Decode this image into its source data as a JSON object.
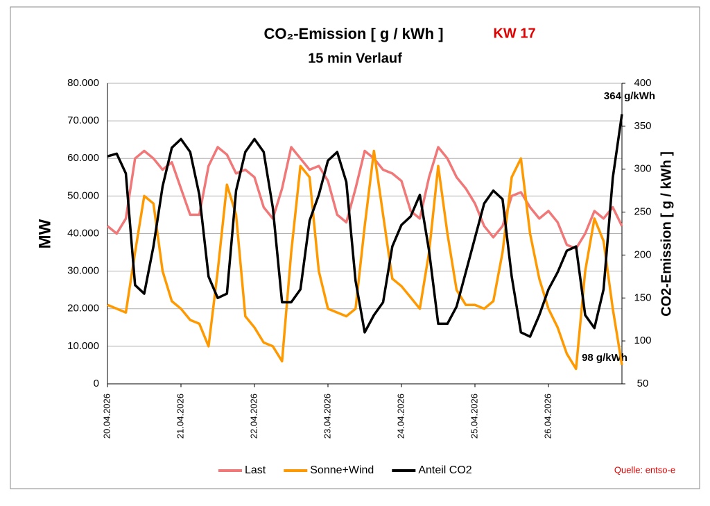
{
  "chart_data": {
    "type": "line",
    "title": "CO₂-Emission [ g / kWh ]",
    "title_tag": "KW 17",
    "subtitle": "15 min Verlauf",
    "y_label": "MW",
    "y2_label": "CO2-Emission [ g / kWh ]",
    "source": "Quelle: entso-e",
    "annotations": [
      "364 g/kWh",
      "98 g/kWh"
    ],
    "grid": true,
    "legend": "bottom",
    "categories": [
      "20.04.2026",
      null,
      null,
      null,
      null,
      null,
      null,
      null,
      "21.04.2026",
      null,
      null,
      null,
      null,
      null,
      null,
      null,
      "22.04.2026",
      null,
      null,
      null,
      null,
      null,
      null,
      null,
      "23.04.2026",
      null,
      null,
      null,
      null,
      null,
      null,
      null,
      "24.04.2026",
      null,
      null,
      null,
      null,
      null,
      null,
      null,
      "25.04.2026",
      null,
      null,
      null,
      null,
      null,
      null,
      null,
      "26.04.2026",
      null,
      null,
      null,
      null,
      null,
      null,
      null,
      null
    ],
    "ylim": [
      0,
      80000
    ],
    "yticks": [
      0,
      {
        "value": 10000,
        "label": "10.000"
      },
      {
        "value": 20000,
        "label": "20.000"
      },
      {
        "value": 30000,
        "label": "30.000"
      },
      {
        "value": 40000,
        "label": "40.000"
      },
      {
        "value": 50000,
        "label": "50.000"
      },
      {
        "value": 60000,
        "label": "60.000"
      },
      {
        "value": 70000,
        "label": "70.000"
      },
      {
        "value": 80000,
        "label": "80.000"
      }
    ],
    "y2lim": [
      50,
      400
    ],
    "y2ticks": [
      50,
      100,
      150,
      200,
      250,
      300,
      350,
      400
    ],
    "series": [
      {
        "name": "Last",
        "color": "#f07878",
        "values": [
          42000,
          40000,
          44000,
          60000,
          62000,
          60000,
          57000,
          59000,
          52000,
          45000,
          45000,
          58000,
          63000,
          61000,
          56000,
          57000,
          55000,
          47000,
          44000,
          52000,
          63000,
          60000,
          57000,
          58000,
          54000,
          45000,
          43000,
          52000,
          62000,
          60000,
          57000,
          56000,
          54000,
          46000,
          44000,
          55000,
          63000,
          60000,
          55000,
          52000,
          48000,
          42000,
          39000,
          42000,
          50000,
          51000,
          47000,
          44000,
          46000,
          43000,
          37000,
          36000,
          40000,
          46000,
          44000,
          47000,
          42000
        ]
      },
      {
        "name": "Sonne+Wind",
        "color": "#ff9900",
        "values": [
          21000,
          20000,
          19000,
          35000,
          50000,
          48000,
          30000,
          22000,
          20000,
          17000,
          16000,
          10000,
          30000,
          53000,
          45000,
          18000,
          15000,
          11000,
          10000,
          6000,
          35000,
          58000,
          55000,
          30000,
          20000,
          19000,
          18000,
          20000,
          42000,
          62000,
          45000,
          28000,
          26000,
          23000,
          20000,
          35000,
          58000,
          40000,
          25000,
          21000,
          21000,
          20000,
          22000,
          35000,
          55000,
          60000,
          40000,
          28000,
          20000,
          15000,
          8000,
          4000,
          30000,
          44000,
          38000,
          20000,
          5000
        ]
      },
      {
        "name": "Anteil CO2",
        "color": "#000000",
        "axis": "y2",
        "values": [
          315,
          318,
          295,
          165,
          155,
          210,
          280,
          325,
          335,
          320,
          270,
          175,
          150,
          155,
          275,
          320,
          335,
          320,
          255,
          145,
          145,
          160,
          240,
          270,
          310,
          320,
          285,
          170,
          110,
          130,
          145,
          210,
          235,
          245,
          270,
          205,
          120,
          120,
          140,
          180,
          220,
          260,
          275,
          265,
          175,
          110,
          105,
          130,
          160,
          180,
          205,
          210,
          130,
          115,
          160,
          290,
          364
        ]
      }
    ]
  }
}
